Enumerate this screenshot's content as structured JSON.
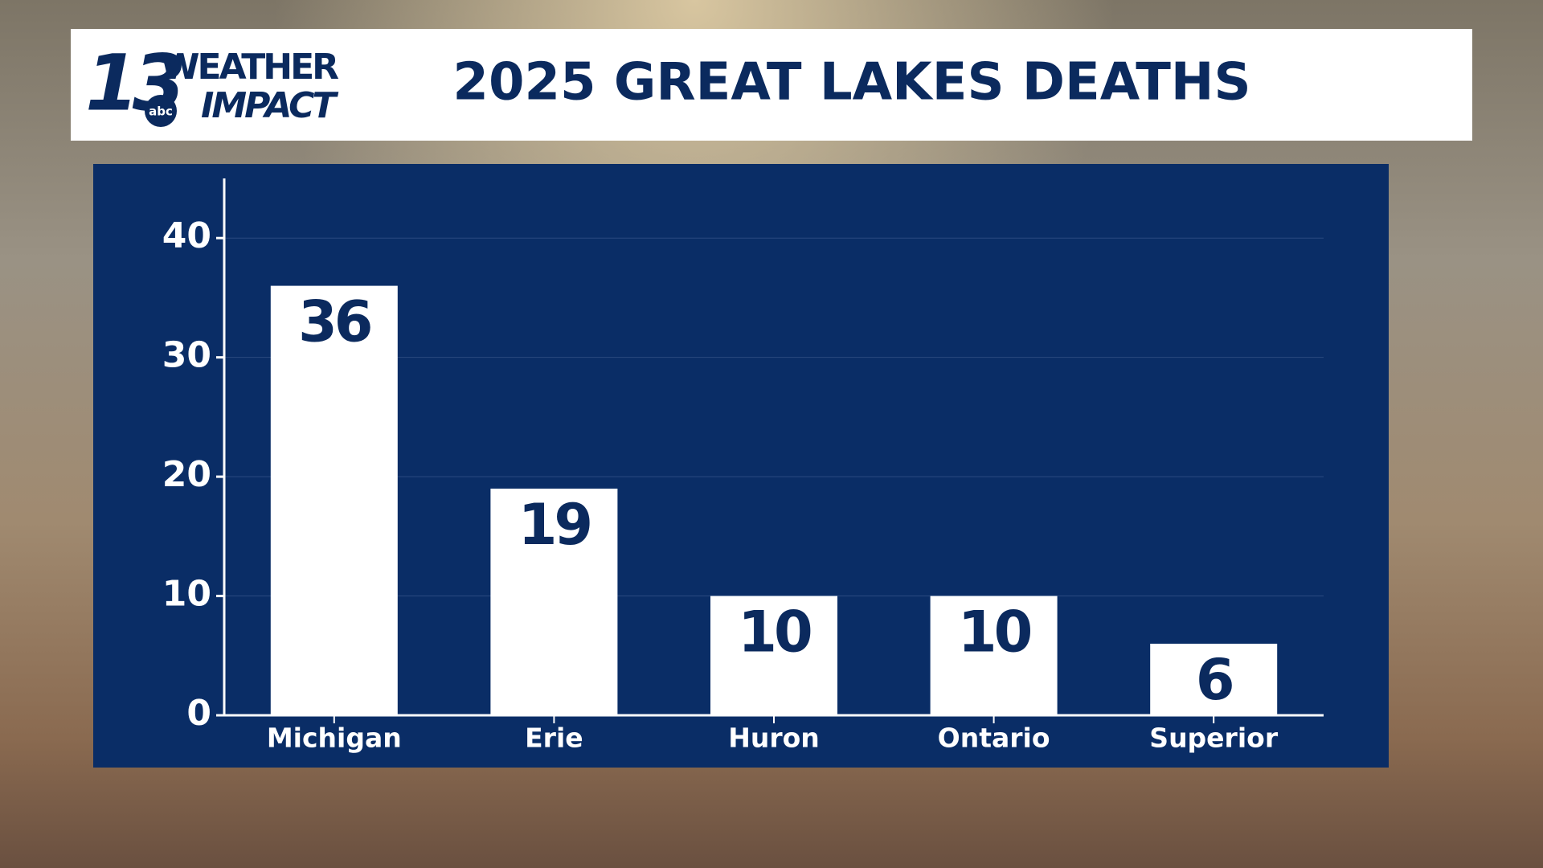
{
  "logo": {
    "number": "13",
    "network": "abc",
    "line1": "WEATHER",
    "line2": "IMPACT"
  },
  "chart_data": {
    "type": "bar",
    "title": "2025 GREAT LAKES DEATHS",
    "categories": [
      "Michigan",
      "Erie",
      "Huron",
      "Ontario",
      "Superior"
    ],
    "values": [
      36,
      19,
      10,
      10,
      6
    ],
    "color": "#ffffff",
    "ylim": [
      0,
      45
    ],
    "yticks": [
      0,
      10,
      20,
      30,
      40
    ],
    "grid": true
  }
}
